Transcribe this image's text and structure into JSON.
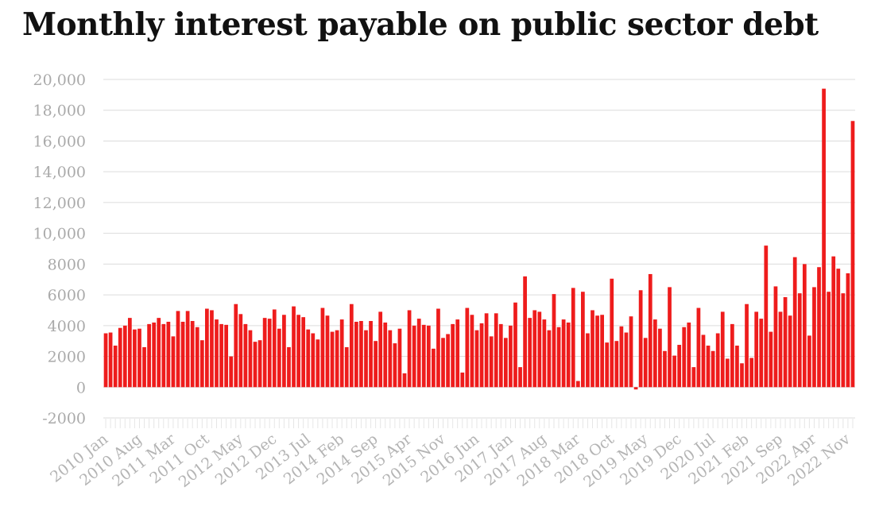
{
  "chart_data": {
    "type": "bar",
    "title": "Monthly interest payable on public sector debt",
    "xlabel": "",
    "ylabel": "",
    "ylim": [
      -2000,
      20000
    ],
    "yticks": [
      -2000,
      0,
      2000,
      4000,
      6000,
      8000,
      10000,
      12000,
      14000,
      16000,
      18000,
      20000
    ],
    "ytick_labels": [
      "-2000",
      "0",
      "2000",
      "4000",
      "6000",
      "8000",
      "10,000",
      "12,000",
      "14,000",
      "16,000",
      "18,000",
      "20,000"
    ],
    "grid": true,
    "legend": "none",
    "bar_color": "#ee1c1c",
    "x_tick_labels": [
      "2010 Jan",
      "2010 Aug",
      "2011 Mar",
      "2011 Oct",
      "2012 May",
      "2012 Dec",
      "2013 Jul",
      "2014 Feb",
      "2014 Sep",
      "2015 Apr",
      "2015 Nov",
      "2016 Jun",
      "2017 Jan",
      "2017 Aug",
      "2018 Mar",
      "2018 Oct",
      "2019 May",
      "2019 Dec",
      "2020 Jul",
      "2021 Feb",
      "2021 Sep",
      "2022 Apr",
      "2022 Nov"
    ],
    "x_start": "2010 Jan",
    "x_end": "2022 Nov",
    "series": [
      {
        "values": [
          3500,
          3550,
          2700,
          3850,
          4000,
          4500,
          3750,
          3800,
          2600,
          4100,
          4200,
          4500,
          4100,
          4250,
          3300,
          4950,
          4250,
          4950,
          4300,
          3900,
          3050,
          5100,
          5000,
          4400,
          4100,
          4050,
          2000,
          5400,
          4750,
          4100,
          3700,
          2950,
          3050,
          4500,
          4450,
          5050,
          3800,
          4700,
          2600,
          5250,
          4700,
          4550,
          3750,
          3500,
          3100,
          5150,
          4650,
          3600,
          3700,
          4400,
          2600,
          5400,
          4250,
          4300,
          3700,
          4300,
          3000,
          4900,
          4200,
          3700,
          2850,
          3800,
          900,
          5000,
          4000,
          4450,
          4050,
          4000,
          2500,
          5100,
          3200,
          3450,
          4100,
          4400,
          950,
          5150,
          4700,
          3700,
          4150,
          4800,
          3300,
          4800,
          4100,
          3200,
          4000,
          5500,
          1300,
          7200,
          4500,
          5000,
          4900,
          4400,
          3700,
          6050,
          3900,
          4400,
          4200,
          6450,
          400,
          6200,
          3500,
          5000,
          4650,
          4700,
          2900,
          7050,
          3000,
          3950,
          3550,
          4600,
          -150,
          6300,
          3200,
          7350,
          4400,
          3800,
          2350,
          6500,
          2050,
          2750,
          3900,
          4200,
          1300,
          5150,
          3400,
          2700,
          2350,
          3500,
          4900,
          1850,
          4100,
          2700,
          1550,
          5400,
          1900,
          4900,
          4450,
          9200,
          3600,
          6550,
          4900,
          5850,
          4650,
          8450,
          6100,
          8000,
          3350,
          6500,
          7800,
          19400,
          6200,
          8500,
          7700,
          6100,
          7400,
          17300
        ]
      }
    ]
  }
}
